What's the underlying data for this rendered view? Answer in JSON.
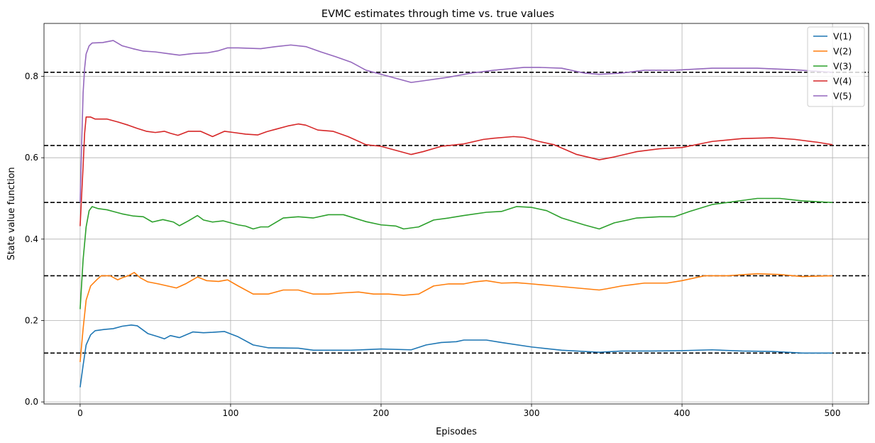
{
  "chart_data": {
    "type": "line",
    "title": "EVMC estimates through time vs. true values",
    "xlabel": "Episodes",
    "ylabel": "State value function",
    "xlim": [
      -24,
      524
    ],
    "ylim": [
      -0.005,
      0.93
    ],
    "xticks": [
      0,
      100,
      200,
      300,
      400,
      500
    ],
    "xtick_labels": [
      "0",
      "100",
      "200",
      "300",
      "400",
      "500"
    ],
    "yticks": [
      0.0,
      0.2,
      0.4,
      0.6,
      0.8
    ],
    "ytick_labels": [
      "0.0",
      "0.2",
      "0.4",
      "0.6",
      "0.8"
    ],
    "grid": true,
    "legend_position": "top-right",
    "true_values": [
      0.12,
      0.31,
      0.49,
      0.63,
      0.81
    ],
    "series": [
      {
        "name": "V(1)",
        "color": "#1f77b4",
        "points": [
          [
            0,
            0.036
          ],
          [
            2,
            0.09
          ],
          [
            4,
            0.14
          ],
          [
            7,
            0.165
          ],
          [
            10,
            0.175
          ],
          [
            16,
            0.178
          ],
          [
            22,
            0.18
          ],
          [
            28,
            0.186
          ],
          [
            34,
            0.189
          ],
          [
            38,
            0.187
          ],
          [
            45,
            0.168
          ],
          [
            52,
            0.16
          ],
          [
            56,
            0.155
          ],
          [
            60,
            0.163
          ],
          [
            66,
            0.158
          ],
          [
            75,
            0.172
          ],
          [
            82,
            0.17
          ],
          [
            88,
            0.171
          ],
          [
            96,
            0.173
          ],
          [
            105,
            0.16
          ],
          [
            115,
            0.14
          ],
          [
            125,
            0.133
          ],
          [
            145,
            0.132
          ],
          [
            155,
            0.127
          ],
          [
            180,
            0.127
          ],
          [
            200,
            0.13
          ],
          [
            220,
            0.128
          ],
          [
            230,
            0.14
          ],
          [
            240,
            0.146
          ],
          [
            250,
            0.148
          ],
          [
            255,
            0.152
          ],
          [
            270,
            0.152
          ],
          [
            280,
            0.146
          ],
          [
            300,
            0.135
          ],
          [
            320,
            0.127
          ],
          [
            345,
            0.122
          ],
          [
            360,
            0.125
          ],
          [
            380,
            0.125
          ],
          [
            400,
            0.126
          ],
          [
            420,
            0.128
          ],
          [
            440,
            0.125
          ],
          [
            460,
            0.124
          ],
          [
            480,
            0.12
          ],
          [
            500,
            0.12
          ]
        ]
      },
      {
        "name": "V(2)",
        "color": "#ff7f0e",
        "points": [
          [
            0,
            0.098
          ],
          [
            2,
            0.18
          ],
          [
            4,
            0.25
          ],
          [
            7,
            0.285
          ],
          [
            11,
            0.3
          ],
          [
            14,
            0.31
          ],
          [
            20,
            0.31
          ],
          [
            25,
            0.3
          ],
          [
            28,
            0.305
          ],
          [
            32,
            0.31
          ],
          [
            36,
            0.318
          ],
          [
            40,
            0.305
          ],
          [
            45,
            0.295
          ],
          [
            52,
            0.29
          ],
          [
            58,
            0.285
          ],
          [
            64,
            0.28
          ],
          [
            70,
            0.29
          ],
          [
            78,
            0.307
          ],
          [
            84,
            0.298
          ],
          [
            92,
            0.296
          ],
          [
            98,
            0.3
          ],
          [
            105,
            0.285
          ],
          [
            115,
            0.265
          ],
          [
            125,
            0.265
          ],
          [
            135,
            0.275
          ],
          [
            145,
            0.275
          ],
          [
            155,
            0.265
          ],
          [
            165,
            0.265
          ],
          [
            175,
            0.268
          ],
          [
            185,
            0.27
          ],
          [
            195,
            0.265
          ],
          [
            205,
            0.265
          ],
          [
            215,
            0.262
          ],
          [
            225,
            0.265
          ],
          [
            235,
            0.285
          ],
          [
            245,
            0.29
          ],
          [
            255,
            0.29
          ],
          [
            262,
            0.295
          ],
          [
            270,
            0.298
          ],
          [
            280,
            0.292
          ],
          [
            290,
            0.293
          ],
          [
            300,
            0.29
          ],
          [
            315,
            0.285
          ],
          [
            330,
            0.28
          ],
          [
            345,
            0.275
          ],
          [
            350,
            0.278
          ],
          [
            360,
            0.285
          ],
          [
            375,
            0.292
          ],
          [
            390,
            0.292
          ],
          [
            400,
            0.298
          ],
          [
            415,
            0.31
          ],
          [
            430,
            0.31
          ],
          [
            450,
            0.315
          ],
          [
            465,
            0.313
          ],
          [
            480,
            0.308
          ],
          [
            500,
            0.31
          ]
        ]
      },
      {
        "name": "V(3)",
        "color": "#2ca02c",
        "points": [
          [
            0,
            0.228
          ],
          [
            2,
            0.35
          ],
          [
            4,
            0.43
          ],
          [
            6,
            0.47
          ],
          [
            8,
            0.48
          ],
          [
            12,
            0.475
          ],
          [
            18,
            0.472
          ],
          [
            22,
            0.468
          ],
          [
            28,
            0.462
          ],
          [
            35,
            0.457
          ],
          [
            42,
            0.455
          ],
          [
            48,
            0.442
          ],
          [
            55,
            0.448
          ],
          [
            62,
            0.442
          ],
          [
            66,
            0.433
          ],
          [
            72,
            0.445
          ],
          [
            78,
            0.458
          ],
          [
            82,
            0.447
          ],
          [
            88,
            0.442
          ],
          [
            95,
            0.445
          ],
          [
            100,
            0.44
          ],
          [
            105,
            0.435
          ],
          [
            110,
            0.432
          ],
          [
            115,
            0.425
          ],
          [
            120,
            0.43
          ],
          [
            125,
            0.43
          ],
          [
            135,
            0.452
          ],
          [
            145,
            0.455
          ],
          [
            155,
            0.452
          ],
          [
            165,
            0.46
          ],
          [
            175,
            0.46
          ],
          [
            190,
            0.443
          ],
          [
            200,
            0.435
          ],
          [
            210,
            0.432
          ],
          [
            215,
            0.425
          ],
          [
            225,
            0.43
          ],
          [
            235,
            0.447
          ],
          [
            245,
            0.452
          ],
          [
            255,
            0.458
          ],
          [
            270,
            0.466
          ],
          [
            280,
            0.468
          ],
          [
            290,
            0.48
          ],
          [
            300,
            0.478
          ],
          [
            310,
            0.47
          ],
          [
            320,
            0.452
          ],
          [
            335,
            0.435
          ],
          [
            345,
            0.425
          ],
          [
            355,
            0.44
          ],
          [
            370,
            0.452
          ],
          [
            385,
            0.455
          ],
          [
            395,
            0.455
          ],
          [
            405,
            0.468
          ],
          [
            420,
            0.485
          ],
          [
            440,
            0.495
          ],
          [
            450,
            0.5
          ],
          [
            465,
            0.5
          ],
          [
            480,
            0.494
          ],
          [
            500,
            0.49
          ]
        ]
      },
      {
        "name": "V(4)",
        "color": "#d62728",
        "points": [
          [
            0,
            0.432
          ],
          [
            2,
            0.58
          ],
          [
            3,
            0.66
          ],
          [
            4,
            0.7
          ],
          [
            7,
            0.7
          ],
          [
            10,
            0.695
          ],
          [
            18,
            0.695
          ],
          [
            25,
            0.688
          ],
          [
            32,
            0.68
          ],
          [
            38,
            0.672
          ],
          [
            44,
            0.665
          ],
          [
            50,
            0.662
          ],
          [
            56,
            0.665
          ],
          [
            60,
            0.66
          ],
          [
            65,
            0.655
          ],
          [
            72,
            0.665
          ],
          [
            80,
            0.665
          ],
          [
            88,
            0.652
          ],
          [
            96,
            0.665
          ],
          [
            102,
            0.662
          ],
          [
            110,
            0.658
          ],
          [
            118,
            0.656
          ],
          [
            124,
            0.664
          ],
          [
            130,
            0.67
          ],
          [
            138,
            0.678
          ],
          [
            145,
            0.683
          ],
          [
            150,
            0.68
          ],
          [
            158,
            0.668
          ],
          [
            168,
            0.665
          ],
          [
            178,
            0.652
          ],
          [
            190,
            0.632
          ],
          [
            200,
            0.628
          ],
          [
            210,
            0.618
          ],
          [
            220,
            0.608
          ],
          [
            228,
            0.615
          ],
          [
            240,
            0.628
          ],
          [
            255,
            0.634
          ],
          [
            268,
            0.645
          ],
          [
            275,
            0.648
          ],
          [
            288,
            0.652
          ],
          [
            295,
            0.65
          ],
          [
            305,
            0.64
          ],
          [
            315,
            0.632
          ],
          [
            330,
            0.608
          ],
          [
            345,
            0.595
          ],
          [
            355,
            0.602
          ],
          [
            370,
            0.615
          ],
          [
            385,
            0.622
          ],
          [
            400,
            0.625
          ],
          [
            420,
            0.64
          ],
          [
            440,
            0.647
          ],
          [
            460,
            0.649
          ],
          [
            475,
            0.645
          ],
          [
            490,
            0.638
          ],
          [
            500,
            0.632
          ]
        ]
      },
      {
        "name": "V(5)",
        "color": "#9467bd",
        "points": [
          [
            0,
            0.49
          ],
          [
            1,
            0.63
          ],
          [
            2,
            0.76
          ],
          [
            3,
            0.82
          ],
          [
            4,
            0.855
          ],
          [
            6,
            0.875
          ],
          [
            8,
            0.882
          ],
          [
            15,
            0.883
          ],
          [
            22,
            0.888
          ],
          [
            28,
            0.875
          ],
          [
            35,
            0.868
          ],
          [
            42,
            0.862
          ],
          [
            50,
            0.86
          ],
          [
            58,
            0.856
          ],
          [
            66,
            0.852
          ],
          [
            75,
            0.856
          ],
          [
            85,
            0.858
          ],
          [
            92,
            0.863
          ],
          [
            98,
            0.87
          ],
          [
            105,
            0.87
          ],
          [
            120,
            0.868
          ],
          [
            130,
            0.873
          ],
          [
            140,
            0.877
          ],
          [
            150,
            0.873
          ],
          [
            160,
            0.86
          ],
          [
            170,
            0.848
          ],
          [
            180,
            0.835
          ],
          [
            190,
            0.815
          ],
          [
            200,
            0.805
          ],
          [
            210,
            0.795
          ],
          [
            220,
            0.785
          ],
          [
            230,
            0.79
          ],
          [
            245,
            0.798
          ],
          [
            260,
            0.808
          ],
          [
            275,
            0.815
          ],
          [
            295,
            0.822
          ],
          [
            305,
            0.822
          ],
          [
            320,
            0.82
          ],
          [
            335,
            0.808
          ],
          [
            345,
            0.805
          ],
          [
            360,
            0.808
          ],
          [
            375,
            0.815
          ],
          [
            395,
            0.815
          ],
          [
            420,
            0.82
          ],
          [
            450,
            0.82
          ],
          [
            475,
            0.816
          ],
          [
            500,
            0.81
          ]
        ]
      }
    ]
  }
}
